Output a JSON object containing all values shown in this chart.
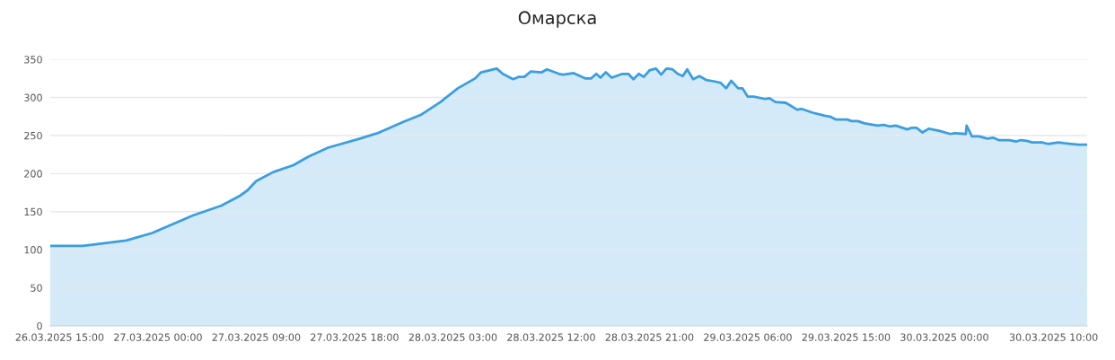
{
  "chart_data": {
    "type": "area",
    "title": "Омарска",
    "x": [
      "2025-03-26T14:08",
      "2025-03-26T17:08",
      "2025-03-26T21:06",
      "2025-03-26T23:29",
      "2025-03-27T03:12",
      "2025-03-27T05:49",
      "2025-03-27T07:24",
      "2025-03-27T08:12",
      "2025-03-27T08:59",
      "2025-03-27T10:34",
      "2025-03-27T12:24",
      "2025-03-27T13:44",
      "2025-03-27T15:34",
      "2025-03-27T18:30",
      "2025-03-27T20:05",
      "2025-03-27T22:28",
      "2025-03-28T00:03",
      "2025-03-28T01:52",
      "2025-03-28T03:27",
      "2025-03-28T05:02",
      "2025-03-28T05:35",
      "2025-03-28T07:01",
      "2025-03-28T07:34",
      "2025-03-28T08:31",
      "2025-03-28T09:00",
      "2025-03-28T09:33",
      "2025-03-28T10:07",
      "2025-03-28T11:08",
      "2025-03-28T11:37",
      "2025-03-28T12:43",
      "2025-03-28T13:07",
      "2025-03-28T14:04",
      "2025-03-28T15:06",
      "2025-03-28T15:39",
      "2025-03-28T16:08",
      "2025-03-28T16:31",
      "2025-03-28T17:00",
      "2025-03-28T17:33",
      "2025-03-28T18:31",
      "2025-03-28T19:04",
      "2025-03-28T19:32",
      "2025-03-28T20:01",
      "2025-03-28T20:29",
      "2025-03-28T21:02",
      "2025-03-28T21:36",
      "2025-03-28T22:04",
      "2025-03-28T22:33",
      "2025-03-28T23:06",
      "2025-03-28T23:35",
      "2025-03-29T00:03",
      "2025-03-29T00:27",
      "2025-03-29T01:00",
      "2025-03-29T01:34",
      "2025-03-29T02:11",
      "2025-03-29T02:59",
      "2025-03-29T03:32",
      "2025-03-29T04:01",
      "2025-03-29T04:29",
      "2025-03-29T05:07",
      "2025-03-29T05:31",
      "2025-03-29T06:00",
      "2025-03-29T06:33",
      "2025-03-29T07:35",
      "2025-03-29T07:59",
      "2025-03-29T08:32",
      "2025-03-29T09:29",
      "2025-03-29T10:31",
      "2025-03-29T10:55",
      "2025-03-29T11:56",
      "2025-03-29T13:03",
      "2025-03-29T13:31",
      "2025-03-29T14:05",
      "2025-03-29T15:07",
      "2025-03-29T15:30",
      "2025-03-29T16:04",
      "2025-03-29T16:41",
      "2025-03-29T17:53",
      "2025-03-29T18:26",
      "2025-03-29T18:59",
      "2025-03-29T19:33",
      "2025-03-29T20:35",
      "2025-03-29T20:58",
      "2025-03-29T21:27",
      "2025-03-29T22:00",
      "2025-03-29T22:34",
      "2025-03-29T23:35",
      "2025-03-30T00:32",
      "2025-03-30T00:56",
      "2025-03-30T01:58",
      "2025-03-30T02:02",
      "2025-03-30T02:31",
      "2025-03-30T03:09",
      "2025-03-30T03:56",
      "2025-03-30T04:30",
      "2025-03-30T04:58",
      "2025-03-30T05:56",
      "2025-03-30T06:34",
      "2025-03-30T06:58",
      "2025-03-30T07:31",
      "2025-03-30T08:04",
      "2025-03-30T08:56",
      "2025-03-30T09:29",
      "2025-03-30T10:26",
      "2025-03-30T10:55",
      "2025-03-30T11:38",
      "2025-03-30T12:16",
      "2025-03-30T13:04"
    ],
    "series": [
      {
        "color": "#3a9ee0",
        "values": [
          105,
          105,
          112,
          122,
          145,
          158,
          170,
          178,
          190,
          202,
          211,
          222,
          234,
          246,
          253,
          268,
          277,
          294,
          312,
          325,
          333,
          338,
          331,
          324,
          327,
          327,
          334,
          333,
          337,
          331,
          330,
          332,
          325,
          325,
          331,
          326,
          333,
          326,
          331,
          331,
          324,
          331,
          327,
          336,
          338,
          330,
          338,
          337,
          331,
          328,
          337,
          324,
          328,
          323,
          321,
          319,
          312,
          322,
          312,
          312,
          301,
          301,
          298,
          299,
          294,
          293,
          284,
          285,
          280,
          276,
          275,
          271,
          271,
          269,
          269,
          266,
          263,
          264,
          262,
          263,
          258,
          260,
          260,
          254,
          259,
          256,
          252,
          253,
          252,
          263,
          249,
          249,
          246,
          247,
          244,
          244,
          242,
          244,
          243,
          241,
          241,
          239,
          241,
          240,
          239,
          238,
          238
        ]
      }
    ],
    "xlim": [
      "2025-03-26T14:08",
      "2025-03-30T13:04"
    ],
    "xticks": [
      {
        "value": "2025-03-26T15:00",
        "label": "26.03.2025 15:00"
      },
      {
        "value": "2025-03-27T00:00",
        "label": "27.03.2025 00:00"
      },
      {
        "value": "2025-03-27T09:00",
        "label": "27.03.2025 09:00"
      },
      {
        "value": "2025-03-27T18:00",
        "label": "27.03.2025 18:00"
      },
      {
        "value": "2025-03-28T03:00",
        "label": "28.03.2025 03:00"
      },
      {
        "value": "2025-03-28T12:00",
        "label": "28.03.2025 12:00"
      },
      {
        "value": "2025-03-28T21:00",
        "label": "28.03.2025 21:00"
      },
      {
        "value": "2025-03-29T06:00",
        "label": "29.03.2025 06:00"
      },
      {
        "value": "2025-03-29T15:00",
        "label": "29.03.2025 15:00"
      },
      {
        "value": "2025-03-30T00:00",
        "label": "30.03.2025 00:00"
      },
      {
        "value": "2025-03-30T10:00",
        "label": "30.03.2025 10:00"
      }
    ],
    "ylim": [
      0,
      350
    ],
    "yticks": [
      0,
      50,
      100,
      150,
      200,
      250,
      300,
      350
    ],
    "grid": "y",
    "legend": false
  }
}
